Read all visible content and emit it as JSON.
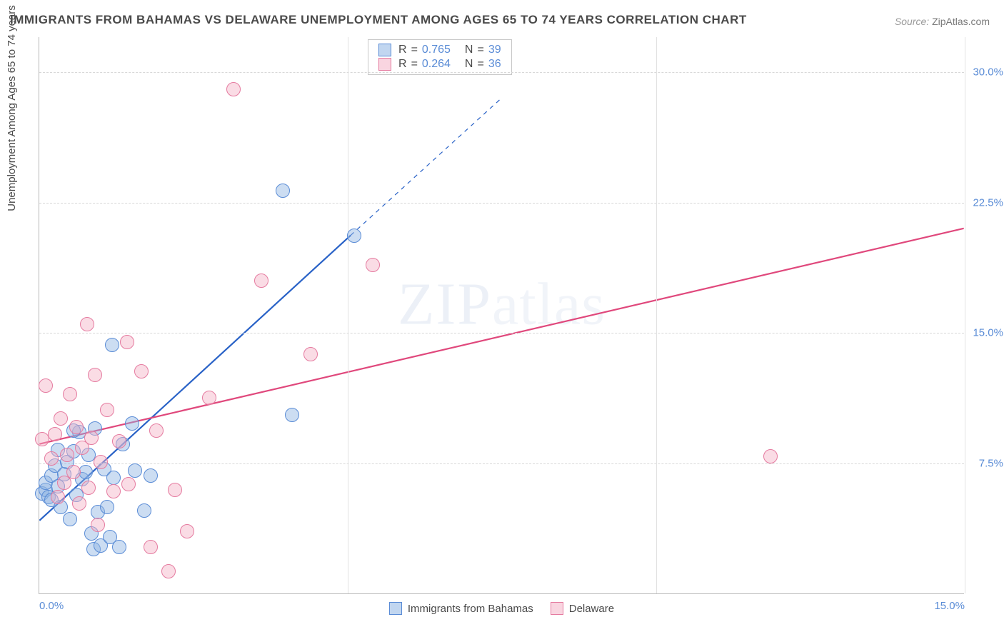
{
  "title": "IMMIGRANTS FROM BAHAMAS VS DELAWARE UNEMPLOYMENT AMONG AGES 65 TO 74 YEARS CORRELATION CHART",
  "source_label": "Source:",
  "source_value": "ZipAtlas.com",
  "ylabel": "Unemployment Among Ages 65 to 74 years",
  "watermark1": "ZIP",
  "watermark2": "atlas",
  "chart": {
    "type": "scatter",
    "xlim": [
      0,
      15
    ],
    "ylim": [
      0,
      32
    ],
    "x_ticks": [
      0,
      5,
      10,
      15
    ],
    "x_tick_labels": [
      "0.0%",
      "",
      "",
      "15.0%"
    ],
    "y_ticks": [
      7.5,
      15,
      22.5,
      30
    ],
    "y_tick_labels": [
      "7.5%",
      "15.0%",
      "22.5%",
      "30.0%"
    ],
    "grid_color": "#d8d8d8",
    "axis_color": "#b8b8b8",
    "tick_label_color": "#5a8cd6",
    "background_color": "#ffffff",
    "marker_radius": 10,
    "series": [
      {
        "name": "Immigrants from Bahamas",
        "fill": "rgba(142,180,227,0.45)",
        "stroke": "#5a8cd6",
        "R": "0.765",
        "N": "39",
        "trend": {
          "x1": 0,
          "y1": 4.2,
          "x2": 5.05,
          "y2": 20.6,
          "dash_to_x": 7.5,
          "dash_to_y": 28.5,
          "color": "#2962c7",
          "width": 2.2
        },
        "points": [
          [
            0.05,
            5.8
          ],
          [
            0.1,
            6.0
          ],
          [
            0.1,
            6.4
          ],
          [
            0.15,
            5.6
          ],
          [
            0.2,
            6.8
          ],
          [
            0.2,
            5.4
          ],
          [
            0.25,
            7.4
          ],
          [
            0.3,
            6.2
          ],
          [
            0.3,
            8.3
          ],
          [
            0.35,
            5.0
          ],
          [
            0.4,
            6.9
          ],
          [
            0.45,
            7.6
          ],
          [
            0.5,
            4.3
          ],
          [
            0.55,
            8.2
          ],
          [
            0.6,
            5.7
          ],
          [
            0.65,
            9.3
          ],
          [
            0.7,
            6.6
          ],
          [
            0.75,
            7.0
          ],
          [
            0.8,
            8.0
          ],
          [
            0.85,
            3.5
          ],
          [
            0.88,
            2.6
          ],
          [
            0.9,
            9.5
          ],
          [
            0.95,
            4.7
          ],
          [
            1.0,
            2.8
          ],
          [
            1.05,
            7.2
          ],
          [
            1.1,
            5.0
          ],
          [
            1.15,
            3.3
          ],
          [
            1.2,
            6.7
          ],
          [
            1.3,
            2.7
          ],
          [
            1.35,
            8.6
          ],
          [
            1.18,
            14.3
          ],
          [
            1.5,
            9.8
          ],
          [
            1.55,
            7.1
          ],
          [
            1.7,
            4.8
          ],
          [
            1.8,
            6.8
          ],
          [
            3.95,
            23.2
          ],
          [
            4.1,
            10.3
          ],
          [
            5.1,
            20.6
          ],
          [
            0.55,
            9.4
          ]
        ]
      },
      {
        "name": "Delaware",
        "fill": "rgba(244,178,198,0.45)",
        "stroke": "#e57ba0",
        "R": "0.264",
        "N": "36",
        "trend": {
          "x1": 0,
          "y1": 8.6,
          "x2": 15,
          "y2": 21.0,
          "color": "#e0487c",
          "width": 2.2
        },
        "points": [
          [
            0.05,
            8.9
          ],
          [
            0.1,
            12.0
          ],
          [
            0.2,
            7.8
          ],
          [
            0.25,
            9.2
          ],
          [
            0.3,
            5.6
          ],
          [
            0.35,
            10.1
          ],
          [
            0.4,
            6.4
          ],
          [
            0.45,
            8.0
          ],
          [
            0.5,
            11.5
          ],
          [
            0.55,
            7.0
          ],
          [
            0.6,
            9.6
          ],
          [
            0.65,
            5.2
          ],
          [
            0.7,
            8.4
          ],
          [
            0.78,
            15.5
          ],
          [
            0.8,
            6.1
          ],
          [
            0.85,
            9.0
          ],
          [
            0.9,
            12.6
          ],
          [
            0.95,
            4.0
          ],
          [
            1.0,
            7.6
          ],
          [
            1.1,
            10.6
          ],
          [
            1.2,
            5.9
          ],
          [
            1.3,
            8.8
          ],
          [
            1.42,
            14.5
          ],
          [
            1.45,
            6.3
          ],
          [
            1.65,
            12.8
          ],
          [
            1.8,
            2.7
          ],
          [
            1.9,
            9.4
          ],
          [
            2.1,
            1.3
          ],
          [
            2.2,
            6.0
          ],
          [
            2.4,
            3.6
          ],
          [
            2.75,
            11.3
          ],
          [
            3.15,
            29.0
          ],
          [
            3.6,
            18.0
          ],
          [
            4.4,
            13.8
          ],
          [
            5.4,
            18.9
          ],
          [
            11.85,
            7.9
          ]
        ]
      }
    ]
  },
  "legend": {
    "r_label": "R",
    "n_label": "N",
    "eq": "="
  }
}
